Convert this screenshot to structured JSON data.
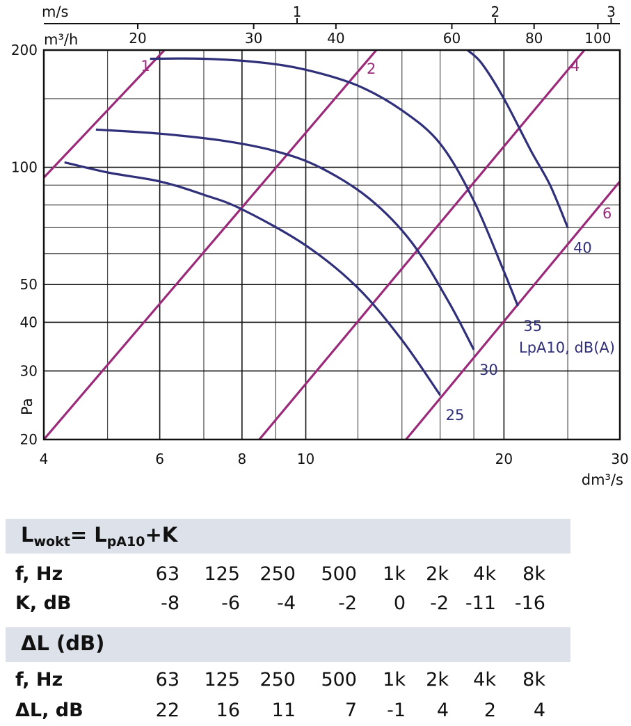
{
  "chart_data": {
    "type": "line",
    "xlabel": "dm³/s",
    "ylabel": "Pa",
    "x_scale": "log",
    "y_scale": "log",
    "xlim": [
      4,
      30
    ],
    "ylim": [
      20,
      200
    ],
    "x_ticks": [
      4,
      6,
      8,
      10,
      20,
      30
    ],
    "y_ticks": [
      20,
      30,
      40,
      50,
      100,
      200
    ],
    "top_axes": [
      {
        "label": "m/s",
        "ticks": [
          {
            "value": 1,
            "label": "1"
          },
          {
            "value": 2,
            "label": "2"
          },
          {
            "value": 3,
            "label": "3"
          }
        ]
      },
      {
        "label": "m³/h",
        "ticks": [
          {
            "value": 20,
            "label": "20"
          },
          {
            "value": 30,
            "label": "30"
          },
          {
            "value": 40,
            "label": "40"
          },
          {
            "value": 60,
            "label": "60"
          },
          {
            "value": 80,
            "label": "80"
          },
          {
            "value": 100,
            "label": "100"
          }
        ]
      }
    ],
    "curve_axis_label": "LpA10, dB(A)",
    "series": [
      {
        "name": "40",
        "points": [
          [
            17.6,
            200
          ],
          [
            18.5,
            185
          ],
          [
            20,
            150
          ],
          [
            22,
            110
          ],
          [
            23.5,
            90
          ],
          [
            25,
            70
          ]
        ]
      },
      {
        "name": "35",
        "points": [
          [
            5.8,
            190
          ],
          [
            7,
            190
          ],
          [
            8.5,
            186
          ],
          [
            10,
            178
          ],
          [
            12,
            162
          ],
          [
            14,
            140
          ],
          [
            16,
            115
          ],
          [
            18,
            82
          ],
          [
            20,
            54
          ],
          [
            21,
            44
          ]
        ]
      },
      {
        "name": "30",
        "points": [
          [
            4.8,
            125
          ],
          [
            6,
            122
          ],
          [
            7.5,
            117
          ],
          [
            9,
            110
          ],
          [
            10.5,
            100
          ],
          [
            12.5,
            83
          ],
          [
            14.5,
            64
          ],
          [
            16.5,
            45
          ],
          [
            18,
            34
          ]
        ]
      },
      {
        "name": "25",
        "points": [
          [
            4.3,
            103
          ],
          [
            5,
            97
          ],
          [
            6,
            92
          ],
          [
            7,
            85
          ],
          [
            8,
            78
          ],
          [
            10,
            63
          ],
          [
            12,
            49
          ],
          [
            14,
            36
          ],
          [
            16,
            26
          ]
        ]
      }
    ],
    "duct_lines": [
      {
        "label": "1",
        "points": [
          [
            3.95,
            92
          ],
          [
            6.1,
            200
          ]
        ]
      },
      {
        "label": "2",
        "points": [
          [
            4.0,
            20
          ],
          [
            12.8,
            200
          ]
        ]
      },
      {
        "label": "4",
        "points": [
          [
            8.5,
            20
          ],
          [
            26.5,
            200
          ]
        ]
      },
      {
        "label": "6",
        "points": [
          [
            14.2,
            20
          ],
          [
            30,
            92
          ]
        ]
      }
    ]
  },
  "coefficient_table": {
    "title_main": "L",
    "title_sub": "wokt",
    "title_mid": "= L",
    "title_sub2": "pA10",
    "title_end": "+K",
    "freq_label": "f, Hz",
    "value_label": "K, dB",
    "frequencies": [
      "63",
      "125",
      "250",
      "500",
      "1k",
      "2k",
      "4k",
      "8k"
    ],
    "values": [
      "-8",
      "-6",
      "-4",
      "-2",
      "0",
      "-2",
      "-11",
      "-16"
    ]
  },
  "attenuation_table": {
    "title": "ΔL (dB)",
    "freq_label": "f, Hz",
    "value_label": "ΔL, dB",
    "frequencies": [
      "63",
      "125",
      "250",
      "500",
      "1k",
      "2k",
      "4k",
      "8k"
    ],
    "values": [
      "22",
      "16",
      "11",
      "7",
      "-1",
      "4",
      "2",
      "4"
    ]
  },
  "colors": {
    "curves": "#2f2f7a",
    "duct_lines": "#9b2a7a",
    "grid": "#111111",
    "band": "#dde2ea"
  }
}
